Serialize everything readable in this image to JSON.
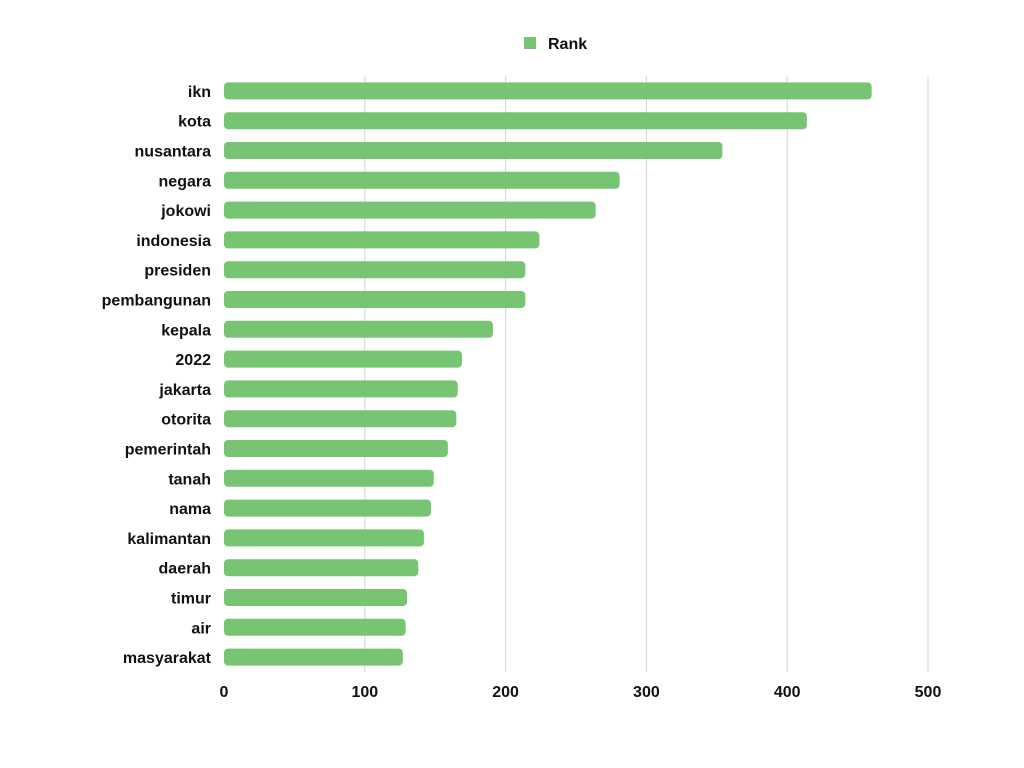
{
  "chart_data": {
    "type": "bar",
    "orientation": "horizontal",
    "categories": [
      "ikn",
      "kota",
      "nusantara",
      "negara",
      "jokowi",
      "indonesia",
      "presiden",
      "pembangunan",
      "kepala",
      "2022",
      "jakarta",
      "otorita",
      "pemerintah",
      "tanah",
      "nama",
      "kalimantan",
      "daerah",
      "timur",
      "air",
      "masyarakat"
    ],
    "series": [
      {
        "name": "Rank",
        "color": "#77c472",
        "values": [
          460,
          414,
          354,
          281,
          264,
          224,
          214,
          214,
          191,
          169,
          166,
          165,
          159,
          149,
          147,
          142,
          138,
          130,
          129,
          127
        ]
      }
    ],
    "xlim": [
      0,
      500
    ],
    "xticks": [
      0,
      100,
      200,
      300,
      400,
      500
    ],
    "grid": true,
    "legend": "top-center"
  }
}
